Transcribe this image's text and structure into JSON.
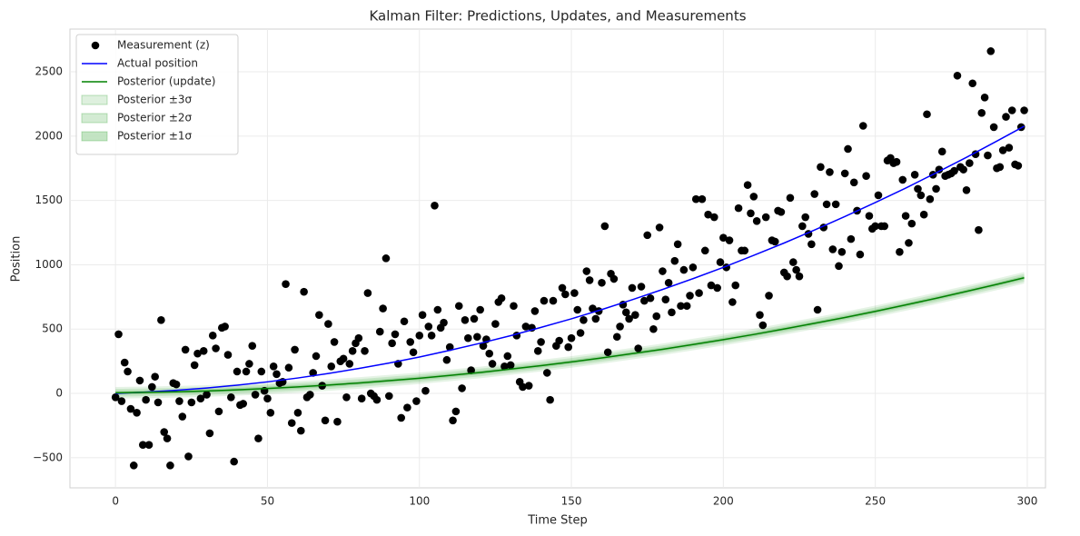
{
  "chart_data": {
    "type": "line",
    "title": "Kalman Filter: Predictions, Updates, and Measurements",
    "xlabel": "Time Step",
    "ylabel": "Position",
    "xlim": [
      -15,
      306
    ],
    "ylim": [
      -734,
      2832
    ],
    "xticks": [
      0,
      50,
      100,
      150,
      200,
      250,
      300
    ],
    "yticks": [
      {
        "value": -500,
        "label": "−500"
      },
      0,
      500,
      1000,
      1500,
      2000,
      2500
    ],
    "grid": true,
    "legend": "upper left",
    "measurements": {
      "name": "Measurement (z)",
      "color": "#000000",
      "values": [
        -30,
        460,
        -60,
        240,
        170,
        -120,
        -560,
        -150,
        100,
        -400,
        -50,
        -400,
        50,
        130,
        -70,
        570,
        -300,
        -350,
        -560,
        80,
        70,
        -60,
        -180,
        340,
        -490,
        -70,
        220,
        310,
        -40,
        330,
        -10,
        -310,
        450,
        350,
        -140,
        510,
        520,
        300,
        -30,
        -530,
        170,
        -90,
        -80,
        170,
        230,
        370,
        -10,
        -350,
        170,
        20,
        -40,
        -150,
        210,
        150,
        80,
        90,
        850,
        200,
        -230,
        340,
        -150,
        -290,
        790,
        -30,
        -10,
        160,
        290,
        610,
        60,
        -210,
        540,
        210,
        400,
        -220,
        250,
        270,
        -30,
        230,
        330,
        390,
        430,
        -40,
        330,
        780,
        0,
        -20,
        -50,
        480,
        660,
        1050,
        -20,
        390,
        460,
        230,
        -190,
        560,
        -110,
        400,
        320,
        -60,
        450,
        610,
        20,
        520,
        450,
        1460,
        650,
        510,
        550,
        260,
        360,
        -210,
        -140,
        680,
        40,
        570,
        430,
        180,
        580,
        440,
        650,
        370,
        420,
        310,
        230,
        540,
        710,
        740,
        210,
        290,
        220,
        680,
        450,
        90,
        50,
        520,
        60,
        510,
        640,
        330,
        400,
        720,
        160,
        -50,
        720,
        370,
        410,
        820,
        770,
        360,
        430,
        780,
        650,
        470,
        570,
        950,
        880,
        660,
        580,
        640,
        860,
        1300,
        320,
        930,
        890,
        440,
        520,
        690,
        630,
        580,
        820,
        610,
        350,
        830,
        720,
        1230,
        740,
        500,
        600,
        1290,
        950,
        730,
        860,
        630,
        1030,
        1160,
        680,
        960,
        680,
        760,
        980,
        1510,
        780,
        1510,
        1110,
        1390,
        840,
        1370,
        820,
        1020,
        1210,
        980,
        1190,
        710,
        840,
        1440,
        1110,
        1110,
        1620,
        1400,
        1530,
        1340,
        610,
        530,
        1370,
        760,
        1190,
        1180,
        1420,
        1410,
        940,
        910,
        1520,
        1020,
        960,
        910,
        1300,
        1370,
        1240,
        1160,
        1550,
        650,
        1760,
        1290,
        1470,
        1720,
        1120,
        1470,
        990,
        1100,
        1710,
        1900,
        1200,
        1640,
        1420,
        1080,
        2080,
        1690,
        1380,
        1280,
        1300,
        1540,
        1300,
        1300,
        1810,
        1830,
        1790,
        1800,
        1100,
        1660,
        1380,
        1170,
        1320,
        1700,
        1590,
        1540,
        1390,
        2170,
        1510,
        1700,
        1590,
        1740,
        1880,
        1690,
        1700,
        1710,
        1730,
        2470,
        1760,
        1740,
        1580,
        1790,
        2410,
        1860,
        1270,
        2180,
        2300,
        1850,
        2660,
        2070,
        1750,
        1760,
        1890,
        2150,
        1910,
        2200,
        1780,
        1770,
        2070,
        2200
      ]
    },
    "x": [
      0,
      10,
      20,
      30,
      40,
      50,
      60,
      70,
      80,
      90,
      100,
      110,
      120,
      130,
      140,
      150,
      160,
      170,
      180,
      190,
      200,
      210,
      220,
      230,
      240,
      250,
      260,
      270,
      280,
      290,
      299
    ],
    "series": [
      {
        "name": "Actual position",
        "color": "#0000ff",
        "values": [
          0,
          10,
          24,
          42,
          64,
          90,
          120,
          155,
          194,
          236,
          283,
          335,
          390,
          449,
          513,
          580,
          652,
          728,
          808,
          892,
          980,
          1073,
          1169,
          1270,
          1375,
          1484,
          1596,
          1714,
          1835,
          1961,
          2077
        ]
      },
      {
        "name": "Posterior (update)",
        "color": "#008000",
        "values": [
          5,
          8,
          13,
          19,
          28,
          38,
          51,
          65,
          81,
          99,
          118,
          140,
          163,
          189,
          216,
          245,
          276,
          309,
          343,
          380,
          418,
          458,
          501,
          545,
          590,
          638,
          688,
          739,
          793,
          848,
          899
        ]
      }
    ],
    "sigma": [
      15,
      15,
      15,
      15,
      15,
      15,
      15,
      15,
      15,
      15,
      15,
      15,
      15,
      15,
      15,
      15,
      15,
      15,
      15,
      15,
      15,
      15,
      15,
      15,
      15,
      15,
      15,
      15,
      15,
      15,
      15
    ],
    "bands": [
      {
        "name": "Posterior ±3σ",
        "k": 3,
        "color": "#2ca02c",
        "opacity": 0.12
      },
      {
        "name": "Posterior ±2σ",
        "k": 2,
        "color": "#2ca02c",
        "opacity": 0.16
      },
      {
        "name": "Posterior ±1σ",
        "k": 1,
        "color": "#2ca02c",
        "opacity": 0.22
      }
    ]
  }
}
